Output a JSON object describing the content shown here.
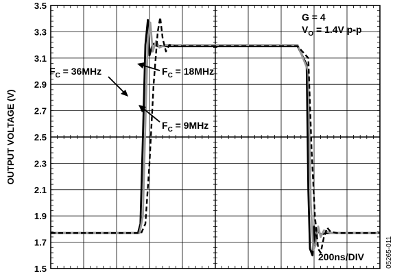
{
  "chart_data": {
    "type": "line",
    "title": "",
    "xlabel": "",
    "ylabel": "OUTPUT VOLTAGE (V)",
    "ylim": [
      1.5,
      3.5
    ],
    "xlim": [
      0,
      2000
    ],
    "grid": true,
    "y_ticks": [
      "1.5",
      "1.7",
      "1.9",
      "2.1",
      "2.3",
      "2.5",
      "2.7",
      "2.9",
      "3.1",
      "3.3",
      "3.5"
    ],
    "x_divisions": 10,
    "series": [
      {
        "name": "F_C = 36MHz",
        "color": "#000000",
        "dash": "solid",
        "x": [
          0,
          530,
          545,
          560,
          575,
          590,
          600,
          620,
          650,
          700,
          900,
          1200,
          1500,
          1555,
          1565,
          1575,
          1590,
          1600,
          1610,
          1620,
          1640,
          1680,
          2000
        ],
        "y": [
          1.77,
          1.77,
          1.84,
          2.5,
          3.2,
          3.39,
          3.12,
          3.21,
          3.19,
          3.19,
          3.19,
          3.19,
          3.19,
          3.05,
          2.1,
          1.65,
          1.6,
          1.82,
          1.68,
          1.79,
          1.76,
          1.77,
          1.77
        ]
      },
      {
        "name": "F_C = 18MHz",
        "color": "#999999",
        "dash": "solid",
        "x": [
          0,
          540,
          560,
          575,
          590,
          605,
          620,
          640,
          660,
          700,
          900,
          1200,
          1500,
          1565,
          1580,
          1595,
          1610,
          1625,
          1640,
          1660,
          1700,
          2000
        ],
        "y": [
          1.77,
          1.77,
          1.9,
          2.6,
          3.25,
          3.37,
          3.15,
          3.23,
          3.18,
          3.2,
          3.2,
          3.2,
          3.2,
          3.0,
          2.0,
          1.64,
          1.68,
          1.82,
          1.74,
          1.79,
          1.77,
          1.77
        ]
      },
      {
        "name": "F_C = 9MHz",
        "color": "#000000",
        "dash": "dashed",
        "x": [
          0,
          550,
          575,
          600,
          625,
          650,
          665,
          680,
          700,
          720,
          760,
          900,
          1200,
          1500,
          1565,
          1585,
          1605,
          1625,
          1640,
          1660,
          1680,
          1700,
          1740,
          2000
        ],
        "y": [
          1.77,
          1.77,
          1.84,
          2.3,
          2.9,
          3.3,
          3.41,
          3.25,
          3.15,
          3.2,
          3.19,
          3.19,
          3.19,
          3.19,
          3.1,
          2.4,
          1.9,
          1.65,
          1.62,
          1.74,
          1.81,
          1.78,
          1.77,
          1.77
        ]
      }
    ]
  },
  "annotations": {
    "gain": "G = 4",
    "vo_main": "V",
    "vo_sub": "O",
    "vo_value": " = 1.4V p-p",
    "fc36_main": "F",
    "fc36_sub": "C",
    "fc36_value": " = 36MHz",
    "fc18_main": "F",
    "fc18_sub": "C",
    "fc18_value": " = 18MHz",
    "fc9_main": "F",
    "fc9_sub": "C",
    "fc9_value": " = 9MHz",
    "timebase": "200ns/DIV",
    "figure_id": "05265-011"
  },
  "colors": {
    "frame": "#000000",
    "grid": "#000000",
    "background": "#ffffff"
  }
}
